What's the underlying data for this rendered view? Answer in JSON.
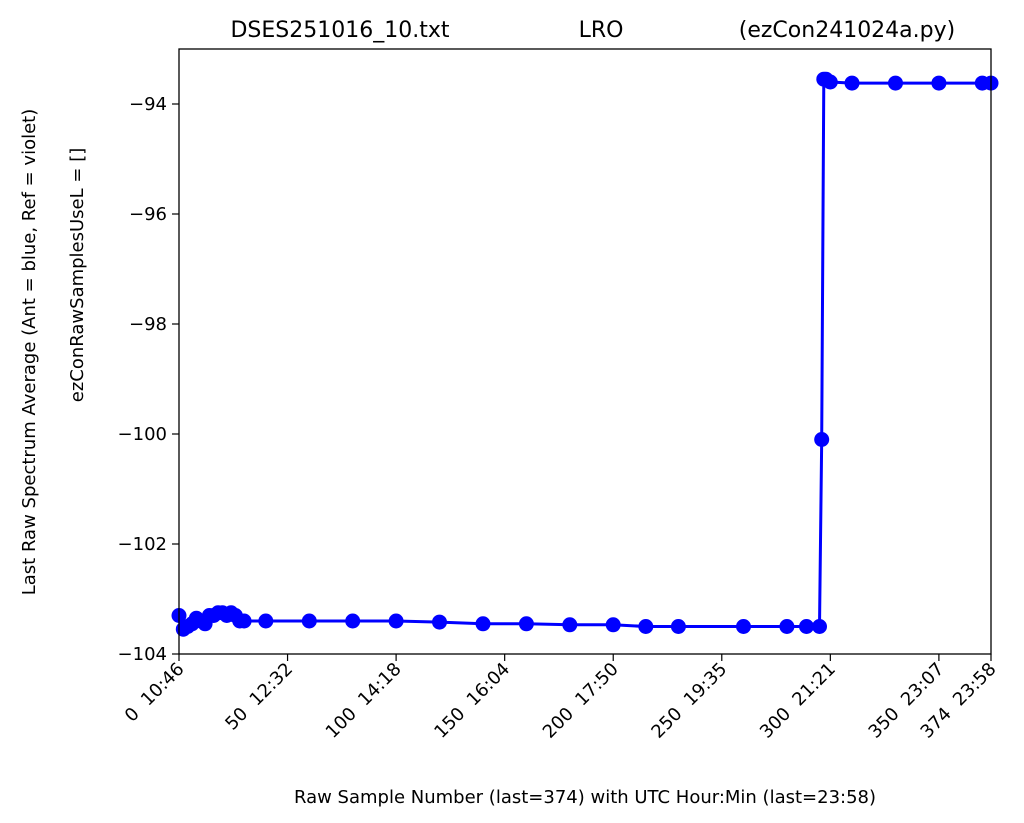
{
  "chart_data": {
    "type": "line",
    "title": {
      "left": "DSES251016_10.txt",
      "center": "LRO",
      "right": "(ezCon241024a.py)"
    },
    "xlabel": "Raw Sample Number (last=374) with UTC Hour:Min (last=23:58)",
    "ylabel_line1": "Last Raw Spectrum Average   (Ant = blue, Ref = violet)",
    "ylabel_line2": "ezConRawSamplesUseL = []",
    "xlim": [
      0,
      374
    ],
    "ylim": [
      -104,
      -93
    ],
    "x_ticks": [
      {
        "value": 0,
        "label": "0  10:46"
      },
      {
        "value": 50,
        "label": "50  12:32"
      },
      {
        "value": 100,
        "label": "100  14:18"
      },
      {
        "value": 150,
        "label": "150  16:04"
      },
      {
        "value": 200,
        "label": "200  17:50"
      },
      {
        "value": 250,
        "label": "250  19:35"
      },
      {
        "value": 300,
        "label": "300  21:21"
      },
      {
        "value": 350,
        "label": "350  23:07"
      },
      {
        "value": 374,
        "label": "374  23:58"
      }
    ],
    "y_ticks": [
      {
        "value": -94,
        "label": "−94"
      },
      {
        "value": -96,
        "label": "−96"
      },
      {
        "value": -98,
        "label": "−98"
      },
      {
        "value": -100,
        "label": "−100"
      },
      {
        "value": -102,
        "label": "−102"
      },
      {
        "value": -104,
        "label": "−104"
      }
    ],
    "grid": false,
    "legend": "none",
    "series": [
      {
        "color": "#0000ff",
        "marker": "circle",
        "x": [
          0,
          2,
          4,
          6,
          8,
          10,
          12,
          14,
          16,
          18,
          20,
          22,
          24,
          26,
          28,
          30,
          40,
          60,
          80,
          100,
          120,
          140,
          160,
          180,
          200,
          215,
          230,
          260,
          280,
          289,
          295,
          296,
          297,
          298,
          300,
          310,
          330,
          350,
          370,
          374
        ],
        "y": [
          -103.3,
          -103.55,
          -103.5,
          -103.45,
          -103.35,
          -103.4,
          -103.45,
          -103.3,
          -103.3,
          -103.25,
          -103.25,
          -103.3,
          -103.25,
          -103.3,
          -103.4,
          -103.4,
          -103.4,
          -103.4,
          -103.4,
          -103.4,
          -103.42,
          -103.45,
          -103.45,
          -103.47,
          -103.47,
          -103.5,
          -103.5,
          -103.5,
          -103.5,
          -103.5,
          -103.5,
          -100.1,
          -93.55,
          -93.55,
          -93.6,
          -93.62,
          -93.62,
          -93.62,
          -93.62,
          -93.62
        ]
      }
    ]
  }
}
